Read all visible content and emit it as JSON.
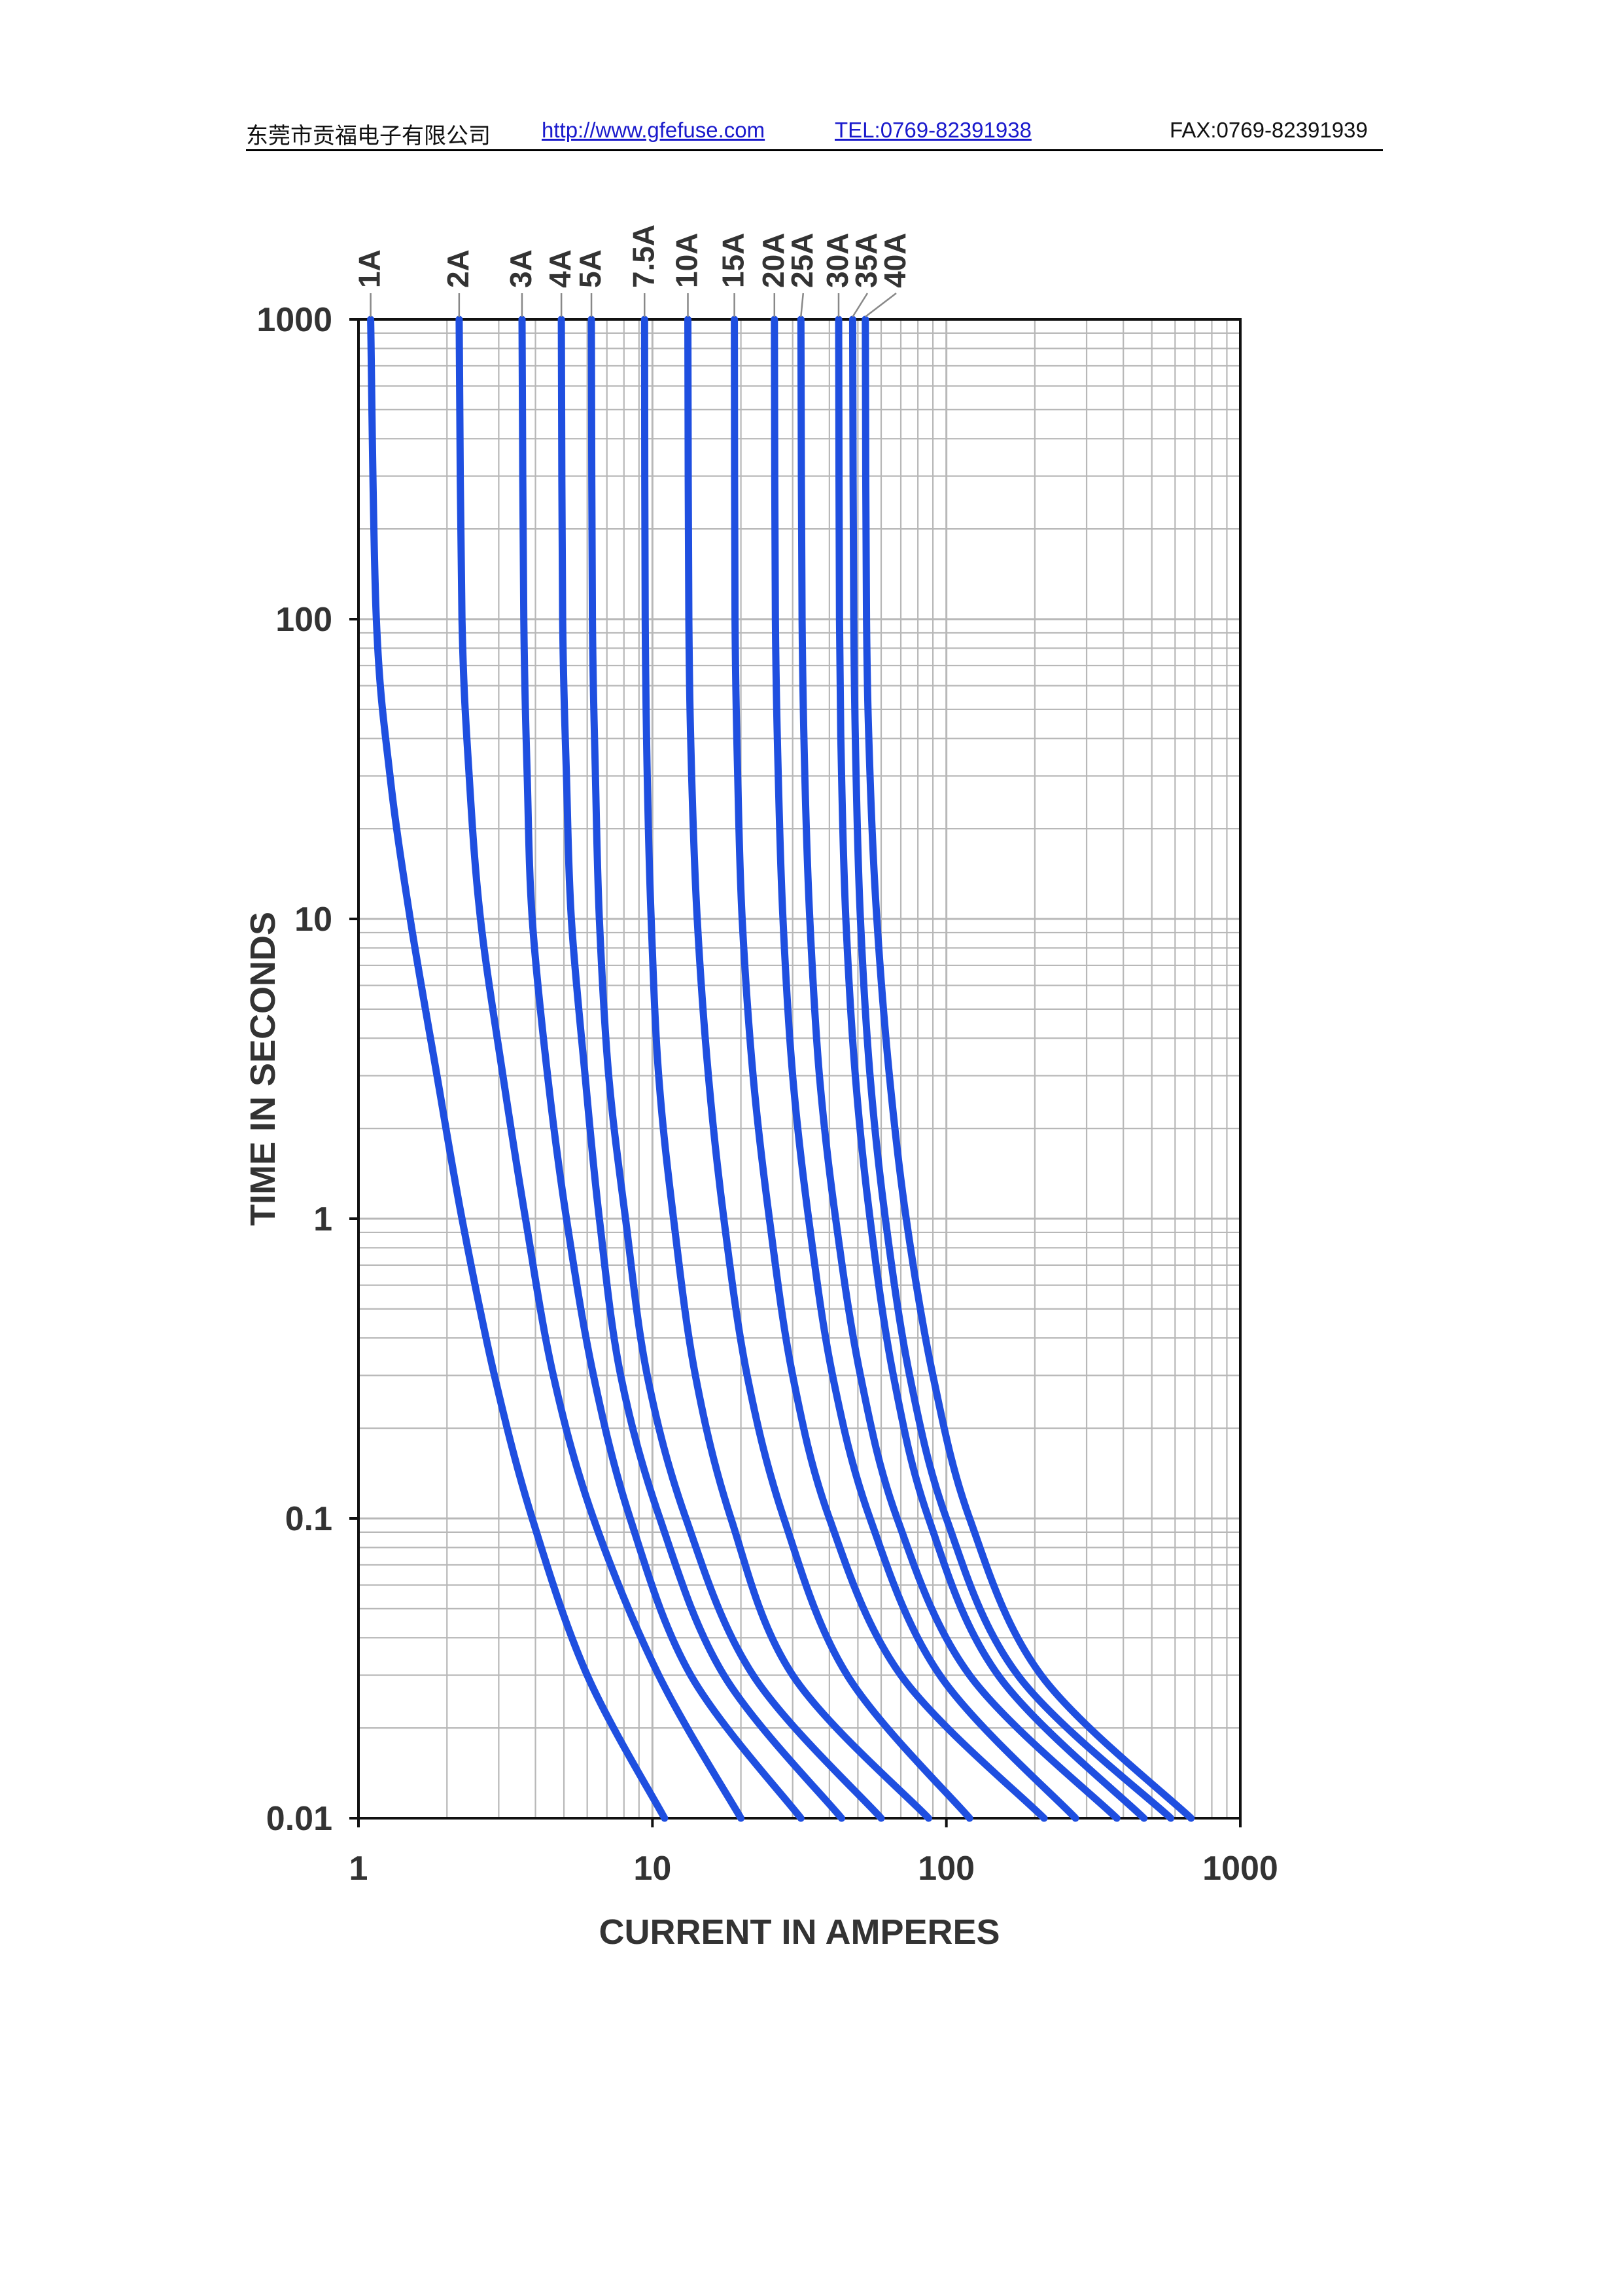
{
  "header": {
    "company": "东莞市贡福电子有限公司",
    "url": "http://www.gfefuse.com",
    "tel": "TEL:0769-82391938",
    "fax": "FAX:0769-82391939"
  },
  "chart_data": {
    "type": "line",
    "title": "",
    "xlabel": "CURRENT IN AMPERES",
    "ylabel": "TIME IN SECONDS",
    "x_scale": "log",
    "y_scale": "log",
    "xlim": [
      1,
      1000
    ],
    "ylim": [
      0.01,
      1000
    ],
    "x_ticks": [
      "1",
      "10",
      "100",
      "1000"
    ],
    "y_ticks": [
      "1000",
      "100",
      "10",
      "1",
      "0.1",
      "0.01"
    ],
    "grid": true,
    "line_color": "#1f4fe0",
    "grid_color": "#b8b8b8",
    "series": [
      {
        "name": "1A",
        "points": [
          [
            1.1,
            1000
          ],
          [
            1.15,
            100
          ],
          [
            1.28,
            30
          ],
          [
            1.5,
            10
          ],
          [
            1.85,
            3
          ],
          [
            2.25,
            1
          ],
          [
            2.9,
            0.3
          ],
          [
            3.9,
            0.1
          ],
          [
            6,
            0.03
          ],
          [
            11,
            0.01
          ]
        ]
      },
      {
        "name": "2A",
        "points": [
          [
            2.2,
            1000
          ],
          [
            2.25,
            100
          ],
          [
            2.38,
            30
          ],
          [
            2.6,
            10
          ],
          [
            3.1,
            3
          ],
          [
            3.7,
            1
          ],
          [
            4.6,
            0.3
          ],
          [
            6.3,
            0.1
          ],
          [
            10.5,
            0.03
          ],
          [
            20,
            0.01
          ]
        ]
      },
      {
        "name": "3A",
        "points": [
          [
            3.6,
            1000
          ],
          [
            3.65,
            100
          ],
          [
            3.75,
            30
          ],
          [
            3.9,
            10
          ],
          [
            4.4,
            3
          ],
          [
            5.1,
            1
          ],
          [
            6.3,
            0.3
          ],
          [
            8.4,
            0.1
          ],
          [
            13.5,
            0.03
          ],
          [
            32,
            0.01
          ]
        ]
      },
      {
        "name": "4A",
        "points": [
          [
            4.9,
            1000
          ],
          [
            4.95,
            100
          ],
          [
            5.1,
            30
          ],
          [
            5.3,
            10
          ],
          [
            5.9,
            3
          ],
          [
            6.6,
            1
          ],
          [
            7.8,
            0.3
          ],
          [
            10.6,
            0.1
          ],
          [
            17.5,
            0.03
          ],
          [
            44,
            0.01
          ]
        ]
      },
      {
        "name": "5A",
        "points": [
          [
            6.2,
            1000
          ],
          [
            6.25,
            100
          ],
          [
            6.4,
            30
          ],
          [
            6.6,
            10
          ],
          [
            7.1,
            3
          ],
          [
            8.1,
            1
          ],
          [
            9.6,
            0.3
          ],
          [
            13,
            0.1
          ],
          [
            22,
            0.03
          ],
          [
            60,
            0.01
          ]
        ]
      },
      {
        "name": "7.5A",
        "points": [
          [
            9.4,
            1000
          ],
          [
            9.45,
            100
          ],
          [
            9.6,
            30
          ],
          [
            9.9,
            10
          ],
          [
            10.5,
            3
          ],
          [
            11.8,
            1
          ],
          [
            14,
            0.3
          ],
          [
            18.5,
            0.1
          ],
          [
            30,
            0.03
          ],
          [
            87,
            0.01
          ]
        ]
      },
      {
        "name": "10A",
        "points": [
          [
            13.2,
            1000
          ],
          [
            13.3,
            100
          ],
          [
            13.6,
            30
          ],
          [
            14.2,
            10
          ],
          [
            15.5,
            3
          ],
          [
            17.5,
            1
          ],
          [
            21,
            0.3
          ],
          [
            28,
            0.1
          ],
          [
            46,
            0.03
          ],
          [
            120,
            0.01
          ]
        ]
      },
      {
        "name": "15A",
        "points": [
          [
            19,
            1000
          ],
          [
            19.1,
            100
          ],
          [
            19.5,
            30
          ],
          [
            20.2,
            10
          ],
          [
            22,
            3
          ],
          [
            25,
            1
          ],
          [
            30,
            0.3
          ],
          [
            40,
            0.1
          ],
          [
            70,
            0.03
          ],
          [
            215,
            0.01
          ]
        ]
      },
      {
        "name": "20A",
        "points": [
          [
            26,
            1000
          ],
          [
            26.2,
            100
          ],
          [
            26.8,
            30
          ],
          [
            27.8,
            10
          ],
          [
            30,
            3
          ],
          [
            34,
            1
          ],
          [
            41,
            0.3
          ],
          [
            55,
            0.1
          ],
          [
            95,
            0.03
          ],
          [
            275,
            0.01
          ]
        ]
      },
      {
        "name": "25A",
        "points": [
          [
            32,
            1000
          ],
          [
            32.3,
            100
          ],
          [
            33,
            30
          ],
          [
            34.3,
            10
          ],
          [
            37,
            3
          ],
          [
            42,
            1
          ],
          [
            51,
            0.3
          ],
          [
            68,
            0.1
          ],
          [
            120,
            0.03
          ],
          [
            380,
            0.01
          ]
        ]
      },
      {
        "name": "30A",
        "points": [
          [
            43,
            1000
          ],
          [
            43.3,
            100
          ],
          [
            44,
            30
          ],
          [
            45.5,
            10
          ],
          [
            49,
            3
          ],
          [
            55,
            1
          ],
          [
            66,
            0.3
          ],
          [
            87,
            0.1
          ],
          [
            150,
            0.03
          ],
          [
            470,
            0.01
          ]
        ]
      },
      {
        "name": "35A",
        "points": [
          [
            48,
            1000
          ],
          [
            48.4,
            100
          ],
          [
            49.3,
            30
          ],
          [
            51,
            10
          ],
          [
            55,
            3
          ],
          [
            62,
            1
          ],
          [
            75,
            0.3
          ],
          [
            100,
            0.1
          ],
          [
            175,
            0.03
          ],
          [
            580,
            0.01
          ]
        ]
      },
      {
        "name": "40A",
        "points": [
          [
            53,
            1000
          ],
          [
            53.5,
            100
          ],
          [
            55,
            30
          ],
          [
            58,
            10
          ],
          [
            64,
            3
          ],
          [
            73,
            1
          ],
          [
            90,
            0.3
          ],
          [
            120,
            0.1
          ],
          [
            210,
            0.03
          ],
          [
            680,
            0.01
          ]
        ]
      }
    ]
  }
}
